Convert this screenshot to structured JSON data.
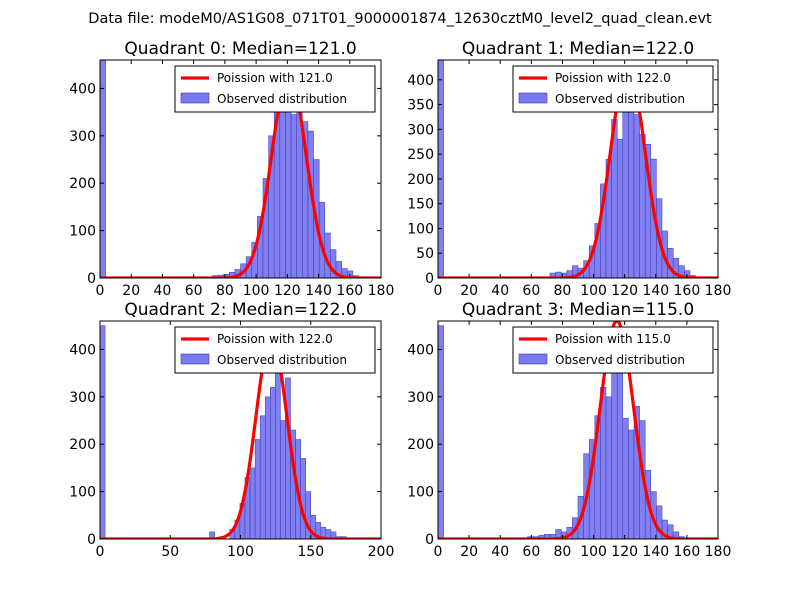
{
  "figure_title": "Data file: modeM0/AS1G08_071T01_9000001874_12630cztM0_level2_quad_clean.evt",
  "chart_data": [
    {
      "type": "bar",
      "title": "Quadrant 0: Median=121.0",
      "median": 121.0,
      "xlim": [
        0,
        180
      ],
      "ylim": [
        0,
        460
      ],
      "xticks": [
        0,
        20,
        40,
        60,
        80,
        100,
        120,
        140,
        160,
        180
      ],
      "yticks": [
        0,
        100,
        200,
        300,
        400
      ],
      "xtick_labels": [
        "0",
        "20",
        "40",
        "60",
        "80",
        "100",
        "120",
        "140",
        "160",
        "180"
      ],
      "ytick_labels": [
        "0",
        "100",
        "200",
        "300",
        "400"
      ],
      "bin_width": 3.6,
      "hist": {
        "name": "Observed distribution",
        "color": "#7878f0",
        "bins": [
          [
            0,
            460
          ],
          [
            72,
            5
          ],
          [
            75.6,
            6
          ],
          [
            79.2,
            8
          ],
          [
            82.8,
            12
          ],
          [
            86.4,
            18
          ],
          [
            90,
            30
          ],
          [
            93.6,
            45
          ],
          [
            97.2,
            75
          ],
          [
            100.8,
            130
          ],
          [
            104.4,
            210
          ],
          [
            108,
            300
          ],
          [
            111.6,
            355
          ],
          [
            115.2,
            395
          ],
          [
            118.8,
            350
          ],
          [
            122.4,
            345
          ],
          [
            126,
            390
          ],
          [
            129.6,
            330
          ],
          [
            133.2,
            310
          ],
          [
            136.8,
            250
          ],
          [
            140.4,
            160
          ],
          [
            144,
            95
          ],
          [
            147.6,
            60
          ],
          [
            151.2,
            35
          ],
          [
            154.8,
            20
          ],
          [
            158.4,
            15
          ],
          [
            162,
            5
          ]
        ]
      },
      "curve": {
        "name": "Poission with 121.0",
        "color": "#ff0000",
        "peak": 430
      },
      "legend": {
        "line_label": "Poission with 121.0",
        "hist_label": "Observed distribution",
        "placement": "top-right"
      }
    },
    {
      "type": "bar",
      "title": "Quadrant 1: Median=122.0",
      "median": 122.0,
      "xlim": [
        0,
        180
      ],
      "ylim": [
        0,
        440
      ],
      "xticks": [
        0,
        20,
        40,
        60,
        80,
        100,
        120,
        140,
        160,
        180
      ],
      "yticks": [
        0,
        50,
        100,
        150,
        200,
        250,
        300,
        350,
        400
      ],
      "xtick_labels": [
        "0",
        "20",
        "40",
        "60",
        "80",
        "100",
        "120",
        "140",
        "160",
        "180"
      ],
      "ytick_labels": [
        "0",
        "50",
        "100",
        "150",
        "200",
        "250",
        "300",
        "350",
        "400"
      ],
      "bin_width": 3.6,
      "hist": {
        "name": "Observed distribution",
        "color": "#7878f0",
        "bins": [
          [
            0,
            440
          ],
          [
            72,
            10
          ],
          [
            75.6,
            12
          ],
          [
            79.2,
            10
          ],
          [
            82.8,
            15
          ],
          [
            86.4,
            25
          ],
          [
            90,
            20
          ],
          [
            93.6,
            35
          ],
          [
            97.2,
            65
          ],
          [
            100.8,
            110
          ],
          [
            104.4,
            190
          ],
          [
            108,
            240
          ],
          [
            111.6,
            320
          ],
          [
            115.2,
            280
          ],
          [
            118.8,
            350
          ],
          [
            122.4,
            420
          ],
          [
            126,
            330
          ],
          [
            129.6,
            290
          ],
          [
            133.2,
            270
          ],
          [
            136.8,
            240
          ],
          [
            140.4,
            160
          ],
          [
            144,
            95
          ],
          [
            147.6,
            60
          ],
          [
            151.2,
            40
          ],
          [
            154.8,
            25
          ],
          [
            158.4,
            15
          ],
          [
            162,
            5
          ]
        ]
      },
      "curve": {
        "name": "Poission with 122.0",
        "color": "#ff0000",
        "peak": 425
      },
      "legend": {
        "line_label": "Poission with 122.0",
        "hist_label": "Observed distribution",
        "placement": "top-right"
      }
    },
    {
      "type": "bar",
      "title": "Quadrant 2: Median=122.0",
      "median": 122.0,
      "xlim": [
        0,
        200
      ],
      "ylim": [
        0,
        460
      ],
      "xticks": [
        0,
        50,
        100,
        150,
        200
      ],
      "yticks": [
        0,
        100,
        200,
        300,
        400
      ],
      "xtick_labels": [
        "0",
        "50",
        "100",
        "150",
        "200"
      ],
      "ytick_labels": [
        "0",
        "100",
        "200",
        "300",
        "400"
      ],
      "bin_width": 3.6,
      "hist": {
        "name": "Observed distribution",
        "color": "#7878f0",
        "bins": [
          [
            0,
            450
          ],
          [
            78,
            15
          ],
          [
            85.2,
            5
          ],
          [
            92.4,
            20
          ],
          [
            96,
            40
          ],
          [
            99.6,
            75
          ],
          [
            103.2,
            130
          ],
          [
            106.8,
            150
          ],
          [
            110.4,
            210
          ],
          [
            114,
            260
          ],
          [
            117.6,
            300
          ],
          [
            121.2,
            320
          ],
          [
            124.8,
            360
          ],
          [
            128.4,
            250
          ],
          [
            132,
            340
          ],
          [
            135.6,
            230
          ],
          [
            139.2,
            210
          ],
          [
            142.8,
            170
          ],
          [
            146.4,
            100
          ],
          [
            150,
            50
          ],
          [
            153.6,
            35
          ],
          [
            157.2,
            25
          ],
          [
            160.8,
            20
          ],
          [
            164.4,
            15
          ],
          [
            168,
            5
          ],
          [
            171.6,
            5
          ]
        ]
      },
      "curve": {
        "name": "Poission with 122.0",
        "color": "#ff0000",
        "peak": 425
      },
      "legend": {
        "line_label": "Poission with 122.0",
        "hist_label": "Observed distribution",
        "placement": "top-right"
      }
    },
    {
      "type": "bar",
      "title": "Quadrant 3: Median=115.0",
      "median": 115.0,
      "xlim": [
        0,
        180
      ],
      "ylim": [
        0,
        460
      ],
      "xticks": [
        0,
        20,
        40,
        60,
        80,
        100,
        120,
        140,
        160,
        180
      ],
      "yticks": [
        0,
        100,
        200,
        300,
        400
      ],
      "xtick_labels": [
        "0",
        "20",
        "40",
        "60",
        "80",
        "100",
        "120",
        "140",
        "160",
        "180"
      ],
      "ytick_labels": [
        "0",
        "100",
        "200",
        "300",
        "400"
      ],
      "bin_width": 3.6,
      "hist": {
        "name": "Observed distribution",
        "color": "#7878f0",
        "bins": [
          [
            0,
            450
          ],
          [
            57.6,
            5
          ],
          [
            61.2,
            5
          ],
          [
            64.8,
            8
          ],
          [
            68.4,
            10
          ],
          [
            72,
            10
          ],
          [
            75.6,
            20
          ],
          [
            79.2,
            15
          ],
          [
            82.8,
            25
          ],
          [
            86.4,
            45
          ],
          [
            90,
            90
          ],
          [
            93.6,
            180
          ],
          [
            97.2,
            210
          ],
          [
            100.8,
            260
          ],
          [
            104.4,
            320
          ],
          [
            108,
            300
          ],
          [
            111.6,
            420
          ],
          [
            115.2,
            390
          ],
          [
            118.8,
            255
          ],
          [
            122.4,
            230
          ],
          [
            126,
            280
          ],
          [
            129.6,
            250
          ],
          [
            133.2,
            145
          ],
          [
            136.8,
            100
          ],
          [
            140.4,
            70
          ],
          [
            144,
            40
          ],
          [
            147.6,
            30
          ],
          [
            151.2,
            15
          ],
          [
            154.8,
            5
          ]
        ]
      },
      "curve": {
        "name": "Poission with 115.0",
        "color": "#ff0000",
        "peak": 460
      },
      "legend": {
        "line_label": "Poission with 115.0",
        "hist_label": "Observed distribution",
        "placement": "top-right"
      }
    }
  ]
}
